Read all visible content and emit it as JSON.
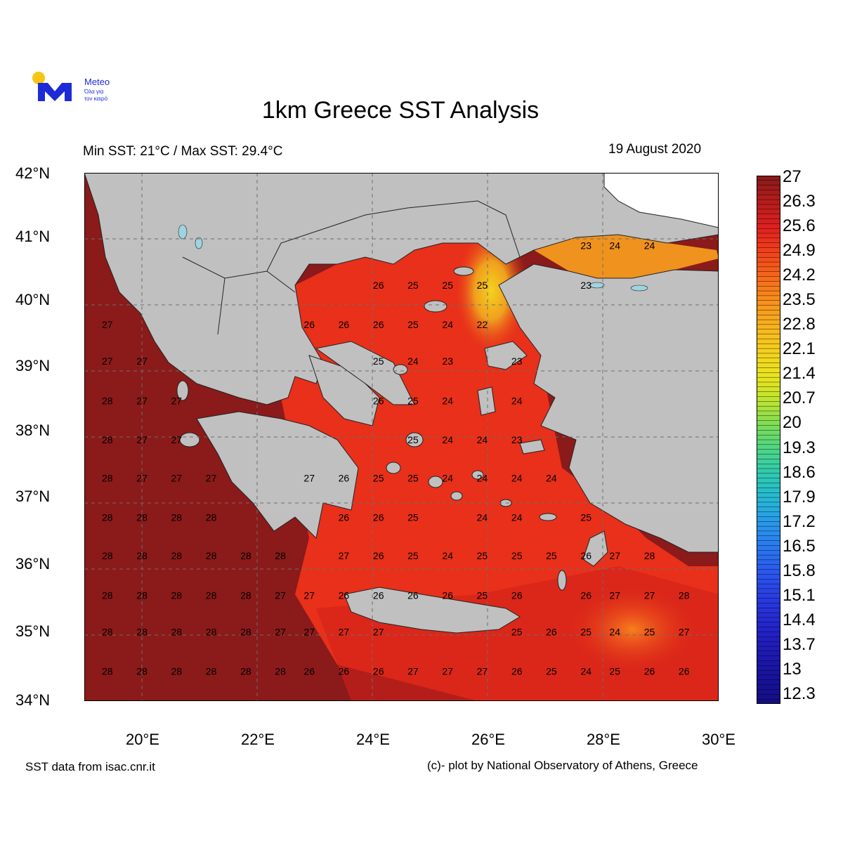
{
  "logo": {
    "brand": "Meteo",
    "tagline_1": "Όλα για",
    "tagline_2": "τον καιρό"
  },
  "title": "1km Greece SST Analysis",
  "subtitle": "Min SST: 21°C / Max SST: 29.4°C",
  "date": "19 August 2020",
  "footer": {
    "source": "SST data from isac.cnr.it",
    "credit": "(c)- plot by National Observatory of Athens, Greece"
  },
  "colors": {
    "land": "#c0c0c0",
    "sea_warm": "#8b1a1a",
    "sea_mid": "#e8301a",
    "sea_cool": "#f08c1e",
    "sea_coolest": "#f2d21e",
    "sun": "#f7c513",
    "brand": "#1d2bd6"
  },
  "map": {
    "lon_range": [
      19,
      30
    ],
    "lat_range": [
      34,
      42
    ],
    "lat_labels": [
      "42°N",
      "41°N",
      "40°N",
      "39°N",
      "38°N",
      "37°N",
      "36°N",
      "35°N",
      "34°N"
    ],
    "lon_labels": [
      "20°E",
      "22°E",
      "24°E",
      "26°E",
      "28°E",
      "30°E"
    ],
    "sst_labels": [
      {
        "lon": 27.7,
        "lat": 40.9,
        "t": "23"
      },
      {
        "lon": 28.2,
        "lat": 40.9,
        "t": "24"
      },
      {
        "lon": 28.8,
        "lat": 40.9,
        "t": "24"
      },
      {
        "lon": 24.1,
        "lat": 40.3,
        "t": "26"
      },
      {
        "lon": 24.7,
        "lat": 40.3,
        "t": "25"
      },
      {
        "lon": 25.3,
        "lat": 40.3,
        "t": "25"
      },
      {
        "lon": 25.9,
        "lat": 40.3,
        "t": "25"
      },
      {
        "lon": 27.7,
        "lat": 40.3,
        "t": "23"
      },
      {
        "lon": 19.4,
        "lat": 39.7,
        "t": "27"
      },
      {
        "lon": 22.9,
        "lat": 39.7,
        "t": "26"
      },
      {
        "lon": 23.5,
        "lat": 39.7,
        "t": "26"
      },
      {
        "lon": 24.1,
        "lat": 39.7,
        "t": "26"
      },
      {
        "lon": 24.7,
        "lat": 39.7,
        "t": "25"
      },
      {
        "lon": 25.3,
        "lat": 39.7,
        "t": "24"
      },
      {
        "lon": 25.9,
        "lat": 39.7,
        "t": "22"
      },
      {
        "lon": 19.4,
        "lat": 39.15,
        "t": "27"
      },
      {
        "lon": 20.0,
        "lat": 39.15,
        "t": "27"
      },
      {
        "lon": 24.1,
        "lat": 39.15,
        "t": "25"
      },
      {
        "lon": 24.7,
        "lat": 39.15,
        "t": "24"
      },
      {
        "lon": 25.3,
        "lat": 39.15,
        "t": "23"
      },
      {
        "lon": 26.5,
        "lat": 39.15,
        "t": "23"
      },
      {
        "lon": 19.4,
        "lat": 38.55,
        "t": "28"
      },
      {
        "lon": 20.0,
        "lat": 38.55,
        "t": "27"
      },
      {
        "lon": 20.6,
        "lat": 38.55,
        "t": "27"
      },
      {
        "lon": 24.1,
        "lat": 38.55,
        "t": "26"
      },
      {
        "lon": 24.7,
        "lat": 38.55,
        "t": "25"
      },
      {
        "lon": 25.3,
        "lat": 38.55,
        "t": "24"
      },
      {
        "lon": 26.5,
        "lat": 38.55,
        "t": "24"
      },
      {
        "lon": 19.4,
        "lat": 37.96,
        "t": "28"
      },
      {
        "lon": 20.0,
        "lat": 37.96,
        "t": "27"
      },
      {
        "lon": 20.6,
        "lat": 37.96,
        "t": "27"
      },
      {
        "lon": 24.7,
        "lat": 37.96,
        "t": "25"
      },
      {
        "lon": 25.3,
        "lat": 37.96,
        "t": "24"
      },
      {
        "lon": 25.9,
        "lat": 37.96,
        "t": "24"
      },
      {
        "lon": 26.5,
        "lat": 37.96,
        "t": "23"
      },
      {
        "lon": 19.4,
        "lat": 37.38,
        "t": "28"
      },
      {
        "lon": 20.0,
        "lat": 37.38,
        "t": "27"
      },
      {
        "lon": 20.6,
        "lat": 37.38,
        "t": "27"
      },
      {
        "lon": 21.2,
        "lat": 37.38,
        "t": "27"
      },
      {
        "lon": 22.9,
        "lat": 37.38,
        "t": "27"
      },
      {
        "lon": 23.5,
        "lat": 37.38,
        "t": "26"
      },
      {
        "lon": 24.1,
        "lat": 37.38,
        "t": "25"
      },
      {
        "lon": 24.7,
        "lat": 37.38,
        "t": "25"
      },
      {
        "lon": 25.3,
        "lat": 37.38,
        "t": "24"
      },
      {
        "lon": 25.9,
        "lat": 37.38,
        "t": "24"
      },
      {
        "lon": 26.5,
        "lat": 37.38,
        "t": "24"
      },
      {
        "lon": 27.1,
        "lat": 37.38,
        "t": "24"
      },
      {
        "lon": 19.4,
        "lat": 36.78,
        "t": "28"
      },
      {
        "lon": 20.0,
        "lat": 36.78,
        "t": "28"
      },
      {
        "lon": 20.6,
        "lat": 36.78,
        "t": "28"
      },
      {
        "lon": 21.2,
        "lat": 36.78,
        "t": "28"
      },
      {
        "lon": 23.5,
        "lat": 36.78,
        "t": "26"
      },
      {
        "lon": 24.1,
        "lat": 36.78,
        "t": "26"
      },
      {
        "lon": 24.7,
        "lat": 36.78,
        "t": "25"
      },
      {
        "lon": 25.9,
        "lat": 36.78,
        "t": "24"
      },
      {
        "lon": 26.5,
        "lat": 36.78,
        "t": "24"
      },
      {
        "lon": 27.7,
        "lat": 36.78,
        "t": "25"
      },
      {
        "lon": 19.4,
        "lat": 36.2,
        "t": "28"
      },
      {
        "lon": 20.0,
        "lat": 36.2,
        "t": "28"
      },
      {
        "lon": 20.6,
        "lat": 36.2,
        "t": "28"
      },
      {
        "lon": 21.2,
        "lat": 36.2,
        "t": "28"
      },
      {
        "lon": 21.8,
        "lat": 36.2,
        "t": "28"
      },
      {
        "lon": 22.4,
        "lat": 36.2,
        "t": "28"
      },
      {
        "lon": 23.5,
        "lat": 36.2,
        "t": "27"
      },
      {
        "lon": 24.1,
        "lat": 36.2,
        "t": "26"
      },
      {
        "lon": 24.7,
        "lat": 36.2,
        "t": "25"
      },
      {
        "lon": 25.3,
        "lat": 36.2,
        "t": "24"
      },
      {
        "lon": 25.9,
        "lat": 36.2,
        "t": "25"
      },
      {
        "lon": 26.5,
        "lat": 36.2,
        "t": "25"
      },
      {
        "lon": 27.1,
        "lat": 36.2,
        "t": "25"
      },
      {
        "lon": 27.7,
        "lat": 36.2,
        "t": "26"
      },
      {
        "lon": 28.2,
        "lat": 36.2,
        "t": "27"
      },
      {
        "lon": 28.8,
        "lat": 36.2,
        "t": "28"
      },
      {
        "lon": 19.4,
        "lat": 35.6,
        "t": "28"
      },
      {
        "lon": 20.0,
        "lat": 35.6,
        "t": "28"
      },
      {
        "lon": 20.6,
        "lat": 35.6,
        "t": "28"
      },
      {
        "lon": 21.2,
        "lat": 35.6,
        "t": "28"
      },
      {
        "lon": 21.8,
        "lat": 35.6,
        "t": "28"
      },
      {
        "lon": 22.4,
        "lat": 35.6,
        "t": "27"
      },
      {
        "lon": 22.9,
        "lat": 35.6,
        "t": "27"
      },
      {
        "lon": 23.5,
        "lat": 35.6,
        "t": "26"
      },
      {
        "lon": 24.1,
        "lat": 35.6,
        "t": "26"
      },
      {
        "lon": 24.7,
        "lat": 35.6,
        "t": "26"
      },
      {
        "lon": 25.3,
        "lat": 35.6,
        "t": "26"
      },
      {
        "lon": 25.9,
        "lat": 35.6,
        "t": "25"
      },
      {
        "lon": 26.5,
        "lat": 35.6,
        "t": "26"
      },
      {
        "lon": 27.7,
        "lat": 35.6,
        "t": "26"
      },
      {
        "lon": 28.2,
        "lat": 35.6,
        "t": "27"
      },
      {
        "lon": 28.8,
        "lat": 35.6,
        "t": "27"
      },
      {
        "lon": 29.4,
        "lat": 35.6,
        "t": "28"
      },
      {
        "lon": 19.4,
        "lat": 35.05,
        "t": "28"
      },
      {
        "lon": 20.0,
        "lat": 35.05,
        "t": "28"
      },
      {
        "lon": 20.6,
        "lat": 35.05,
        "t": "28"
      },
      {
        "lon": 21.2,
        "lat": 35.05,
        "t": "28"
      },
      {
        "lon": 21.8,
        "lat": 35.05,
        "t": "28"
      },
      {
        "lon": 22.4,
        "lat": 35.05,
        "t": "27"
      },
      {
        "lon": 22.9,
        "lat": 35.05,
        "t": "27"
      },
      {
        "lon": 23.5,
        "lat": 35.05,
        "t": "27"
      },
      {
        "lon": 24.1,
        "lat": 35.05,
        "t": "27"
      },
      {
        "lon": 26.5,
        "lat": 35.05,
        "t": "25"
      },
      {
        "lon": 27.1,
        "lat": 35.05,
        "t": "26"
      },
      {
        "lon": 27.7,
        "lat": 35.05,
        "t": "25"
      },
      {
        "lon": 28.2,
        "lat": 35.05,
        "t": "24"
      },
      {
        "lon": 28.8,
        "lat": 35.05,
        "t": "25"
      },
      {
        "lon": 29.4,
        "lat": 35.05,
        "t": "27"
      },
      {
        "lon": 19.4,
        "lat": 34.45,
        "t": "28"
      },
      {
        "lon": 20.0,
        "lat": 34.45,
        "t": "28"
      },
      {
        "lon": 20.6,
        "lat": 34.45,
        "t": "28"
      },
      {
        "lon": 21.2,
        "lat": 34.45,
        "t": "28"
      },
      {
        "lon": 21.8,
        "lat": 34.45,
        "t": "28"
      },
      {
        "lon": 22.4,
        "lat": 34.45,
        "t": "28"
      },
      {
        "lon": 22.9,
        "lat": 34.45,
        "t": "26"
      },
      {
        "lon": 23.5,
        "lat": 34.45,
        "t": "26"
      },
      {
        "lon": 24.1,
        "lat": 34.45,
        "t": "26"
      },
      {
        "lon": 24.7,
        "lat": 34.45,
        "t": "27"
      },
      {
        "lon": 25.3,
        "lat": 34.45,
        "t": "27"
      },
      {
        "lon": 25.9,
        "lat": 34.45,
        "t": "27"
      },
      {
        "lon": 26.5,
        "lat": 34.45,
        "t": "26"
      },
      {
        "lon": 27.1,
        "lat": 34.45,
        "t": "25"
      },
      {
        "lon": 27.7,
        "lat": 34.45,
        "t": "24"
      },
      {
        "lon": 28.2,
        "lat": 34.45,
        "t": "25"
      },
      {
        "lon": 28.8,
        "lat": 34.45,
        "t": "26"
      },
      {
        "lon": 29.4,
        "lat": 34.45,
        "t": "26"
      }
    ]
  },
  "colorbar": {
    "labels": [
      "27",
      "26.3",
      "25.6",
      "24.9",
      "24.2",
      "23.5",
      "22.8",
      "22.1",
      "21.4",
      "20.7",
      "20",
      "19.3",
      "18.6",
      "17.9",
      "17.2",
      "16.5",
      "15.8",
      "15.1",
      "14.4",
      "13.7",
      "13",
      "12.3"
    ],
    "stops": [
      "#8b1a1a",
      "#b81c1c",
      "#e02020",
      "#f2421a",
      "#f76a1a",
      "#f7921c",
      "#f7b41e",
      "#f4d21e",
      "#e8e41e",
      "#b8e432",
      "#78dc5a",
      "#48d48c",
      "#2cc8b4",
      "#26b4d8",
      "#2894ec",
      "#2a72f0",
      "#2a52ec",
      "#2838e0",
      "#2424cc",
      "#1e1ab4",
      "#18129c",
      "#140e84"
    ]
  }
}
